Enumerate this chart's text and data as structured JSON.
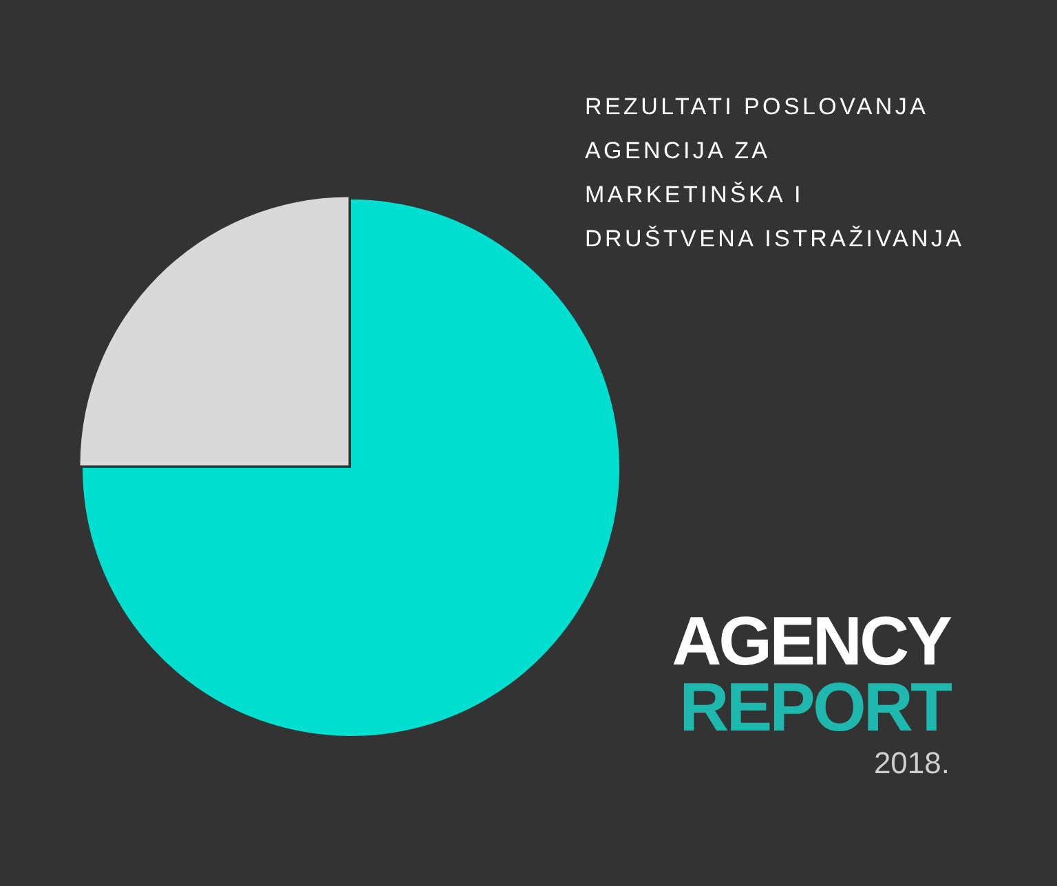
{
  "chart_data": {
    "type": "pie",
    "title": "REZULTATI POSLOVANJA\nAGENCIJA ZA\nMARKETINŠKA I\nDRUŠTVENA ISTRAŽIVANJA",
    "categories": [
      null,
      null
    ],
    "values": [
      75,
      25
    ],
    "colors": [
      "#00dfd0",
      "#d9d9d9"
    ],
    "annotations": [
      "AGENCY",
      "REPORT",
      "2018."
    ]
  }
}
